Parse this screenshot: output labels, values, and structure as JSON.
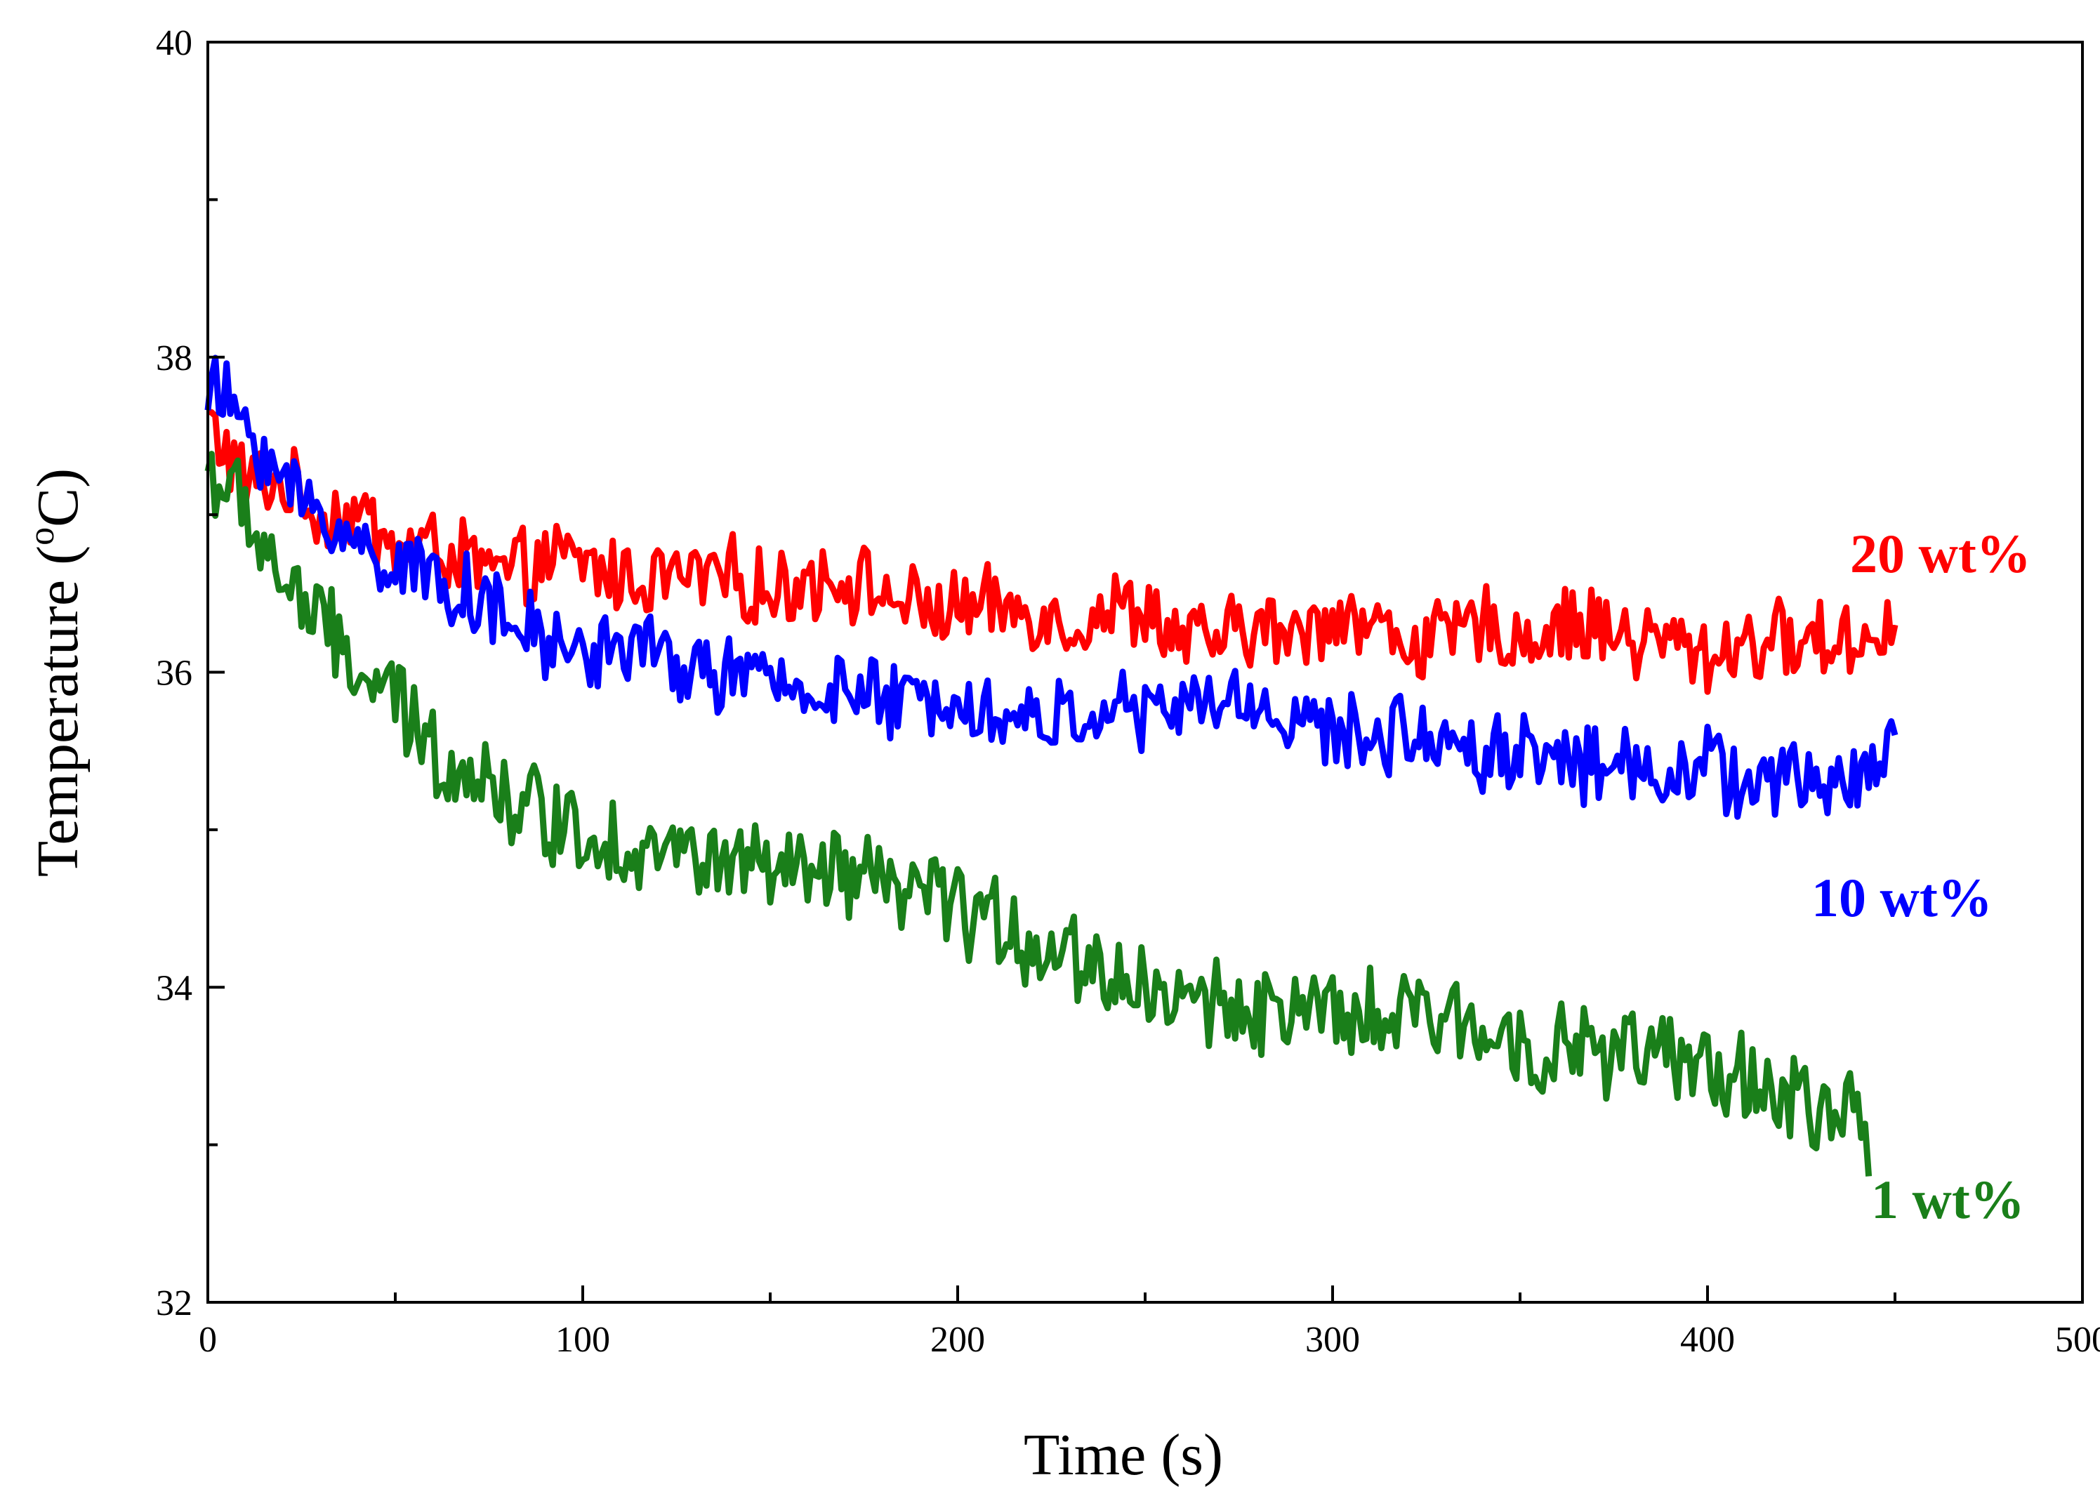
{
  "chart_data": {
    "type": "line",
    "title": "",
    "xlabel": "Time (s)",
    "ylabel_main": "Temperature (",
    "ylabel_sup": "o",
    "ylabel_unit": "C)",
    "xlim": [
      0,
      500
    ],
    "ylim": [
      32,
      40
    ],
    "x_ticks": [
      0,
      100,
      200,
      300,
      400,
      500
    ],
    "x_tick_labels": [
      "0",
      "100",
      "200",
      "300",
      "400",
      "500"
    ],
    "y_ticks": [
      32,
      34,
      36,
      38,
      40
    ],
    "y_tick_labels": [
      "32",
      "34",
      "36",
      "38",
      "40"
    ],
    "x_minor_step": 50,
    "y_minor_step": 1,
    "grid": false,
    "series": [
      {
        "name": "20 wt%",
        "label": "20 wt%",
        "color": "#ff0000",
        "x": [
          0,
          10,
          20,
          30,
          40,
          50,
          60,
          70,
          80,
          90,
          100,
          110,
          120,
          130,
          140,
          150,
          160,
          170,
          180,
          190,
          200,
          210,
          220,
          230,
          240,
          250,
          260,
          270,
          280,
          290,
          300,
          310,
          320,
          330,
          340,
          350,
          360,
          370,
          380,
          390,
          400,
          410,
          420,
          430,
          440,
          450
        ],
        "values": [
          37.6,
          37.2,
          37.2,
          37.0,
          37.0,
          36.8,
          36.8,
          36.7,
          36.6,
          36.7,
          36.7,
          36.6,
          36.6,
          36.6,
          36.6,
          36.5,
          36.6,
          36.6,
          36.5,
          36.4,
          36.4,
          36.4,
          36.4,
          36.3,
          36.4,
          36.4,
          36.2,
          36.2,
          36.3,
          36.2,
          36.4,
          36.3,
          36.2,
          36.2,
          36.3,
          36.2,
          36.3,
          36.3,
          36.2,
          36.2,
          36.1,
          36.2,
          36.2,
          36.2,
          36.2,
          36.3
        ]
      },
      {
        "name": "10 wt%",
        "label": "10 wt%",
        "color": "#0000ff",
        "x": [
          0,
          10,
          20,
          30,
          40,
          50,
          60,
          70,
          80,
          90,
          100,
          110,
          120,
          130,
          140,
          150,
          160,
          170,
          180,
          190,
          200,
          210,
          220,
          230,
          240,
          250,
          260,
          270,
          280,
          290,
          300,
          310,
          320,
          330,
          340,
          350,
          360,
          370,
          380,
          390,
          400,
          410,
          420,
          430,
          440,
          450
        ],
        "values": [
          37.8,
          37.6,
          37.2,
          37.0,
          36.8,
          36.7,
          36.6,
          36.5,
          36.3,
          36.2,
          36.1,
          36.2,
          36.1,
          36.0,
          36.0,
          35.9,
          35.9,
          35.9,
          35.8,
          35.8,
          35.9,
          35.7,
          35.7,
          35.7,
          35.8,
          35.7,
          35.8,
          35.8,
          35.8,
          35.7,
          35.6,
          35.6,
          35.6,
          35.6,
          35.5,
          35.5,
          35.5,
          35.4,
          35.4,
          35.4,
          35.4,
          35.3,
          35.3,
          35.3,
          35.3,
          35.6
        ]
      },
      {
        "name": "1 wt%",
        "label": "1 wt%",
        "color": "#1a7f1a",
        "x": [
          0,
          10,
          20,
          30,
          40,
          50,
          60,
          70,
          80,
          90,
          100,
          110,
          120,
          130,
          140,
          150,
          160,
          170,
          180,
          190,
          200,
          210,
          220,
          230,
          240,
          250,
          260,
          270,
          280,
          290,
          300,
          310,
          320,
          330,
          340,
          350,
          360,
          370,
          380,
          390,
          400,
          410,
          420,
          430,
          440,
          443
        ],
        "values": [
          37.3,
          37.0,
          36.6,
          36.3,
          36.0,
          35.8,
          35.5,
          35.4,
          35.2,
          35.1,
          35.0,
          34.9,
          34.9,
          34.8,
          34.8,
          34.7,
          34.7,
          34.7,
          34.6,
          34.6,
          34.5,
          34.4,
          34.3,
          34.2,
          34.1,
          34.0,
          33.9,
          33.9,
          33.9,
          33.8,
          33.8,
          33.8,
          33.8,
          33.8,
          33.7,
          33.7,
          33.6,
          33.6,
          33.6,
          33.5,
          33.5,
          33.4,
          33.3,
          33.2,
          33.2,
          32.8
        ]
      }
    ]
  }
}
